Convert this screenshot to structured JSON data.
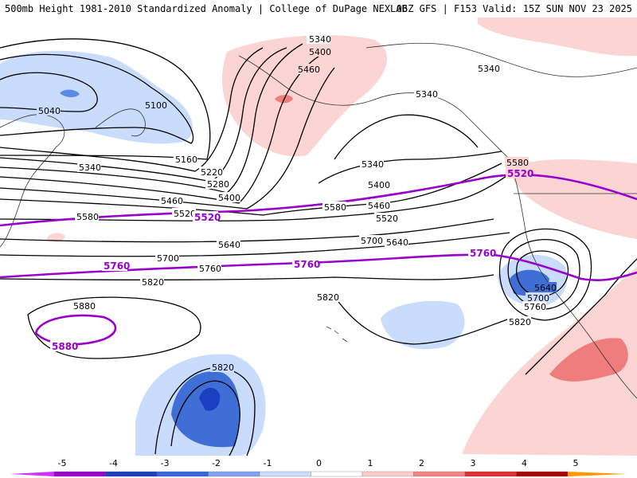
{
  "header": {
    "title": "500mb Height 1981-2010 Standardized Anomaly | College of DuPage NEXLAB",
    "run_info": "06Z GFS | F153 Valid: 15Z SUN NOV 23 2025"
  },
  "colors": {
    "height_contour": "#000000",
    "highlight_contour": "#9900cc",
    "coastline": "#333333"
  },
  "contour_labels": [
    "5340",
    "5400",
    "5460",
    "5340",
    "5340",
    "5040",
    "5100",
    "5160",
    "5220",
    "5280",
    "5340",
    "5400",
    "5460",
    "5520",
    "5580",
    "5580",
    "5520",
    "5460",
    "5400",
    "5340",
    "5580",
    "5640",
    "5700",
    "5640",
    "5700",
    "5760",
    "5820",
    "5820",
    "5880",
    "5820",
    "5640",
    "5700",
    "5760",
    "5820"
  ],
  "highlight_labels": [
    "5520",
    "5520",
    "5760",
    "5760",
    "5760",
    "5880"
  ],
  "colorbar": {
    "ticks": [
      "-5",
      "-4",
      "-3",
      "-2",
      "-1",
      "0",
      "1",
      "2",
      "3",
      "4",
      "5"
    ],
    "colors": [
      "#cc33ff",
      "#9900cc",
      "#1a3fbf",
      "#3366dd",
      "#7fa3f0",
      "#c9dcfb",
      "#ffffff",
      "#ffcccc",
      "#f58585",
      "#e03030",
      "#aa0000",
      "#ff9900"
    ]
  }
}
